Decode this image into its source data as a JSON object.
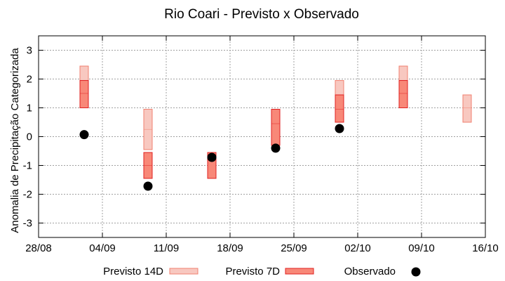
{
  "chart_data": {
    "type": "box",
    "title": "Rio Coari - Previsto x Observado",
    "xlabel": "",
    "ylabel": "Anomalia de Precipitação Categorizada",
    "x_ticks": [
      "28/08",
      "04/09",
      "11/09",
      "18/09",
      "25/09",
      "02/10",
      "09/10",
      "16/10"
    ],
    "xlim_days": [
      0,
      49
    ],
    "ylim": [
      -3.5,
      3.5
    ],
    "y_ticks": [
      -3,
      -2,
      -1,
      0,
      1,
      2,
      3
    ],
    "grid": true,
    "legend_position": "bottom",
    "series": [
      {
        "name": "Previsto 14D",
        "color_fill": "#f8c8c0",
        "color_stroke": "#f08070",
        "points": [
          {
            "x": "02/09",
            "low": 1.0,
            "mid": 1.5,
            "high": 2.45
          },
          {
            "x": "09/09",
            "low": -0.45,
            "mid": 0.25,
            "high": 0.95
          },
          {
            "x": "23/09",
            "low": -0.3,
            "mid": 0.45,
            "high": 0.95
          },
          {
            "x": "30/09",
            "low": 0.5,
            "mid": 1.0,
            "high": 1.95
          },
          {
            "x": "07/10",
            "low": 1.0,
            "mid": 1.5,
            "high": 2.45
          },
          {
            "x": "14/10",
            "low": 0.5,
            "mid": 1.0,
            "high": 1.45
          }
        ]
      },
      {
        "name": "Previsto 7D",
        "color_fill": "#f88878",
        "color_stroke": "#e02020",
        "points": [
          {
            "x": "02/09",
            "low": 1.0,
            "mid": 1.5,
            "high": 1.95
          },
          {
            "x": "09/09",
            "low": -1.45,
            "mid": -1.0,
            "high": -0.55
          },
          {
            "x": "16/09",
            "low": -1.45,
            "mid": -0.7,
            "high": -0.55
          },
          {
            "x": "23/09",
            "low": -0.3,
            "mid": 0.45,
            "high": 0.95
          },
          {
            "x": "30/09",
            "low": 0.5,
            "mid": 0.95,
            "high": 1.45
          },
          {
            "x": "07/10",
            "low": 1.0,
            "mid": 1.5,
            "high": 1.95
          }
        ]
      },
      {
        "name": "Observado",
        "color": "#000000",
        "points": [
          {
            "x": "02/09",
            "y": 0.07
          },
          {
            "x": "09/09",
            "y": -1.72
          },
          {
            "x": "16/09",
            "y": -0.72
          },
          {
            "x": "23/09",
            "y": -0.4
          },
          {
            "x": "30/09",
            "y": 0.28
          }
        ]
      }
    ]
  }
}
